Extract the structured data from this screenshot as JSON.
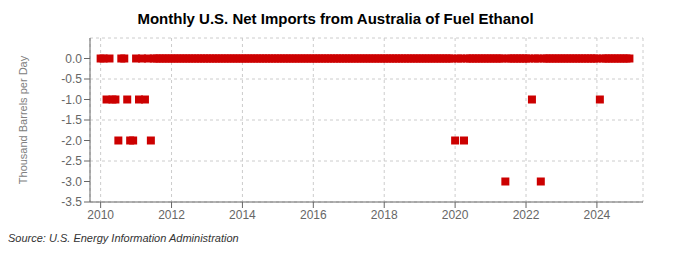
{
  "chart_data": {
    "type": "scatter",
    "title": "Monthly U.S. Net Imports from Australia of Fuel Ethanol",
    "y_label": "Thousand Barrels per Day",
    "annotations": [
      "Source: U.S. Energy Information Administration"
    ],
    "color": "#cc0000",
    "marker": "square",
    "grid": true,
    "xlim": [
      2009.7,
      2025.3
    ],
    "xticks": [
      2010,
      2012,
      2014,
      2016,
      2018,
      2020,
      2022,
      2024
    ],
    "ylim": [
      -3.5,
      0.5
    ],
    "yticks": [
      {
        "value": 0.0,
        "label": "0.0"
      },
      -0.5,
      {
        "value": -1.0,
        "label": "-1.0"
      },
      -1.5,
      {
        "value": -2.0,
        "label": "-2.0"
      },
      -2.5,
      {
        "value": -3.0,
        "label": "-3.0"
      },
      {
        "value": -3.5,
        "label": "-3.5"
      }
    ],
    "x": [
      2010.0,
      2010.083,
      2010.167,
      2010.25,
      2010.333,
      2010.417,
      2010.5,
      2010.583,
      2010.667,
      2010.75,
      2010.833,
      2010.917,
      2011.0,
      2011.083,
      2011.167,
      2011.25,
      2011.333,
      2011.417,
      2011.5,
      2011.583,
      2011.667,
      2011.75,
      2011.833,
      2011.917,
      2012.0,
      2012.083,
      2012.167,
      2012.25,
      2012.333,
      2012.417,
      2012.5,
      2012.583,
      2012.667,
      2012.75,
      2012.833,
      2012.917,
      2013.0,
      2013.083,
      2013.167,
      2013.25,
      2013.333,
      2013.417,
      2013.5,
      2013.583,
      2013.667,
      2013.75,
      2013.833,
      2013.917,
      2014.0,
      2014.083,
      2014.167,
      2014.25,
      2014.333,
      2014.417,
      2014.5,
      2014.583,
      2014.667,
      2014.75,
      2014.833,
      2014.917,
      2015.0,
      2015.083,
      2015.167,
      2015.25,
      2015.333,
      2015.417,
      2015.5,
      2015.583,
      2015.667,
      2015.75,
      2015.833,
      2015.917,
      2016.0,
      2016.083,
      2016.167,
      2016.25,
      2016.333,
      2016.417,
      2016.5,
      2016.583,
      2016.667,
      2016.75,
      2016.833,
      2016.917,
      2017.0,
      2017.083,
      2017.167,
      2017.25,
      2017.333,
      2017.417,
      2017.5,
      2017.583,
      2017.667,
      2017.75,
      2017.833,
      2017.917,
      2018.0,
      2018.083,
      2018.167,
      2018.25,
      2018.333,
      2018.417,
      2018.5,
      2018.583,
      2018.667,
      2018.75,
      2018.833,
      2018.917,
      2019.0,
      2019.083,
      2019.167,
      2019.25,
      2019.333,
      2019.417,
      2019.5,
      2019.583,
      2019.667,
      2019.75,
      2019.833,
      2019.917,
      2020.0,
      2020.083,
      2020.167,
      2020.25,
      2020.333,
      2020.417,
      2020.5,
      2020.583,
      2020.667,
      2020.75,
      2020.833,
      2020.917,
      2021.0,
      2021.083,
      2021.167,
      2021.25,
      2021.333,
      2021.417,
      2021.5,
      2021.583,
      2021.667,
      2021.75,
      2021.833,
      2021.917,
      2022.0,
      2022.083,
      2022.167,
      2022.25,
      2022.333,
      2022.417,
      2022.5,
      2022.583,
      2022.667,
      2022.75,
      2022.833,
      2022.917,
      2023.0,
      2023.083,
      2023.167,
      2023.25,
      2023.333,
      2023.417,
      2023.5,
      2023.583,
      2023.667,
      2023.75,
      2023.833,
      2023.917,
      2024.0,
      2024.083,
      2024.167,
      2024.25,
      2024.333,
      2024.417,
      2024.5,
      2024.583,
      2024.667,
      2024.75,
      2024.833,
      2024.917
    ],
    "values": [
      0.0,
      0.0,
      -1.0,
      0.0,
      -1.0,
      -1.0,
      -2.0,
      0.0,
      0.0,
      -1.0,
      -2.0,
      -2.0,
      0.0,
      -1.0,
      0.0,
      -1.0,
      0.0,
      -2.0,
      0.0,
      0.0,
      0.0,
      0.0,
      0.0,
      0.0,
      0.0,
      0.0,
      0.0,
      0.0,
      0.0,
      0.0,
      0.0,
      0.0,
      0.0,
      0.0,
      0.0,
      0.0,
      0.0,
      0.0,
      0.0,
      0.0,
      0.0,
      0.0,
      0.0,
      0.0,
      0.0,
      0.0,
      0.0,
      0.0,
      0.0,
      0.0,
      0.0,
      0.0,
      0.0,
      0.0,
      0.0,
      0.0,
      0.0,
      0.0,
      0.0,
      0.0,
      0.0,
      0.0,
      0.0,
      0.0,
      0.0,
      0.0,
      0.0,
      0.0,
      0.0,
      0.0,
      0.0,
      0.0,
      0.0,
      0.0,
      0.0,
      0.0,
      0.0,
      0.0,
      0.0,
      0.0,
      0.0,
      0.0,
      0.0,
      0.0,
      0.0,
      0.0,
      0.0,
      0.0,
      0.0,
      0.0,
      0.0,
      0.0,
      0.0,
      0.0,
      0.0,
      0.0,
      0.0,
      0.0,
      0.0,
      0.0,
      0.0,
      0.0,
      0.0,
      0.0,
      0.0,
      0.0,
      0.0,
      0.0,
      0.0,
      0.0,
      0.0,
      0.0,
      0.0,
      0.0,
      0.0,
      0.0,
      0.0,
      0.0,
      0.0,
      0.0,
      -2.0,
      0.0,
      0.0,
      -2.0,
      0.0,
      0.0,
      0.0,
      0.0,
      0.0,
      0.0,
      0.0,
      0.0,
      0.0,
      0.0,
      0.0,
      0.0,
      0.0,
      -3.0,
      0.0,
      0.0,
      0.0,
      0.0,
      0.0,
      0.0,
      0.0,
      0.0,
      -1.0,
      0.0,
      0.0,
      -3.0,
      0.0,
      0.0,
      0.0,
      0.0,
      0.0,
      0.0,
      0.0,
      0.0,
      0.0,
      0.0,
      0.0,
      0.0,
      0.0,
      0.0,
      0.0,
      0.0,
      0.0,
      0.0,
      0.0,
      -1.0,
      0.0,
      0.0,
      0.0,
      0.0,
      0.0,
      0.0,
      0.0,
      0.0,
      0.0,
      0.0
    ]
  }
}
